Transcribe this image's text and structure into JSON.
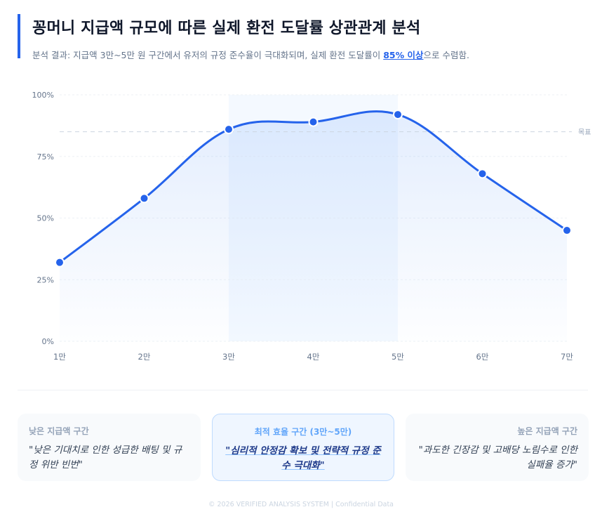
{
  "header": {
    "title": "꽁머니 지급액 규모에 따른 실제 환전 도달률 상관관계 분석",
    "subtitle_prefix": "분석 결과: 지급액 3만~5만 원 구간에서 유저의 규정 준수율이 극대화되며, 실제 환전 도달률이 ",
    "subtitle_highlight": "85% 이상",
    "subtitle_suffix": "으로 수렴함."
  },
  "chart_data": {
    "type": "line",
    "title": "꽁머니 지급액 규모에 따른 실제 환전 도달률 상관관계 분석",
    "xlabel": "",
    "ylabel": "",
    "categories": [
      "1만",
      "2만",
      "3만",
      "4만",
      "5만",
      "6만",
      "7만"
    ],
    "series": [
      {
        "name": "실제 환전 도달률",
        "values": [
          32,
          58,
          86,
          89,
          92,
          68,
          45
        ],
        "color": "#2563eb"
      }
    ],
    "yticks": [
      "0%",
      "25%",
      "50%",
      "75%",
      "100%"
    ],
    "ylim": [
      0,
      100
    ],
    "grid": true,
    "annotations": {
      "target_line": {
        "value": 85,
        "label": "목표"
      },
      "highlight_band": {
        "from": "3만",
        "to": "5만"
      }
    }
  },
  "cards": [
    {
      "label": "낮은 지급액 구간",
      "quote": "\"낮은 기대치로 인한 성급한 배팅 및 규정 위반 빈번\""
    },
    {
      "label": "최적 효율 구간 (3만~5만)",
      "quote": "\"심리적 안정감 확보 및 전략적 규정 준수 극대화\""
    },
    {
      "label": "높은 지급액 구간",
      "quote": "\"과도한 긴장감 및 고배당 노림수로 인한 실패율 증가\""
    }
  ],
  "footer": {
    "text": "© 2026 VERIFIED ANALYSIS SYSTEM | Confidential Data"
  },
  "colors": {
    "accent": "#2563eb",
    "title": "#0f172a",
    "muted": "#64748b"
  }
}
